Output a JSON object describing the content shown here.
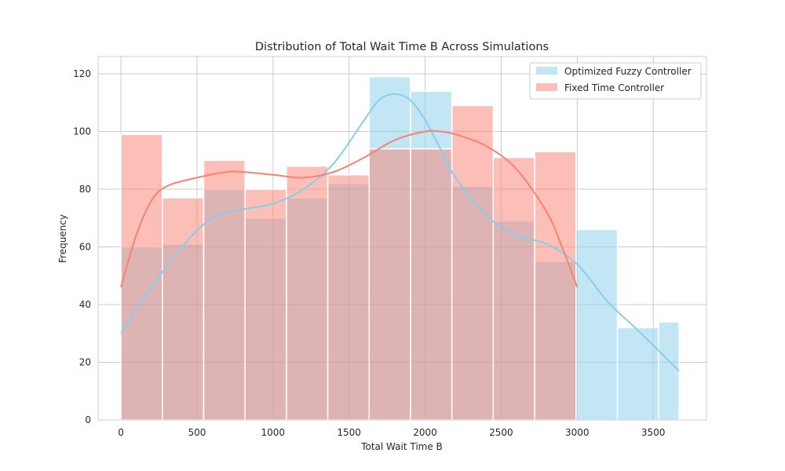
{
  "chart_data": {
    "type": "bar",
    "title": "Distribution of Total Wait Time B Across Simulations",
    "xlabel": "Total Wait Time B",
    "ylabel": "Frequency",
    "xlim": [
      -150,
      3850
    ],
    "ylim": [
      0,
      126
    ],
    "xticks": [
      0,
      500,
      1000,
      1500,
      2000,
      2500,
      3000,
      3500
    ],
    "yticks": [
      0,
      20,
      40,
      60,
      80,
      100,
      120
    ],
    "grid": true,
    "legend_position": "top-right",
    "series": [
      {
        "name": "Optimized Fuzzy Controller",
        "color": "#87ceeb",
        "bin_edges": [
          0,
          272,
          544,
          816,
          1088,
          1360,
          1632,
          1904,
          2176,
          2448,
          2720,
          2992,
          3264,
          3536,
          3670
        ],
        "values": [
          60,
          61,
          80,
          70,
          77,
          82,
          119,
          114,
          81,
          69,
          55,
          66,
          32,
          34
        ],
        "kde": {
          "x": [
            0,
            200,
            400,
            600,
            800,
            1000,
            1200,
            1400,
            1600,
            1700,
            1800,
            1900,
            2000,
            2100,
            2200,
            2400,
            2600,
            2800,
            3000,
            3200,
            3400,
            3670
          ],
          "y": [
            30,
            46,
            60,
            70,
            73,
            75,
            80,
            89,
            104,
            111,
            113,
            111,
            104,
            94,
            84,
            71,
            64,
            61,
            54,
            41,
            31,
            17
          ]
        }
      },
      {
        "name": "Fixed Time Controller",
        "color": "#fa8072",
        "bin_edges": [
          0,
          272,
          544,
          816,
          1088,
          1360,
          1632,
          1904,
          2176,
          2448,
          2720,
          2992
        ],
        "values": [
          99,
          77,
          90,
          80,
          88,
          85,
          94,
          94,
          109,
          91,
          93
        ],
        "kde": {
          "x": [
            0,
            100,
            200,
            300,
            500,
            700,
            800,
            1000,
            1200,
            1400,
            1600,
            1800,
            2000,
            2100,
            2200,
            2400,
            2600,
            2800,
            2900,
            3000
          ],
          "y": [
            46,
            64,
            76,
            81,
            84,
            86,
            86,
            85,
            84,
            86,
            91,
            97,
            100,
            100,
            99,
            95,
            87,
            72,
            60,
            46
          ]
        }
      }
    ]
  }
}
